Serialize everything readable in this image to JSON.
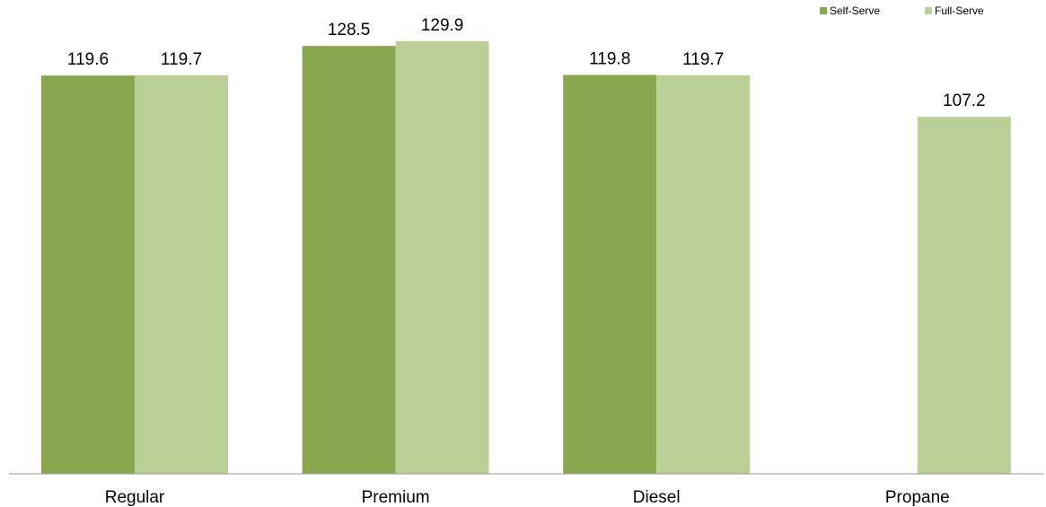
{
  "chart_data": {
    "type": "bar",
    "categories": [
      "Regular",
      "Premium",
      "Diesel",
      "Propane"
    ],
    "series": [
      {
        "name": "Self-Serve",
        "color": "#8aa64e",
        "values": [
          119.6,
          128.5,
          119.8,
          null
        ]
      },
      {
        "name": "Full-Serve",
        "color": "#bbd096",
        "values": [
          119.7,
          129.9,
          119.7,
          107.2
        ]
      }
    ],
    "value_labels": [
      [
        "119.6",
        "128.5",
        "119.8",
        ""
      ],
      [
        "119.7",
        "129.9",
        "119.7",
        "107.2"
      ]
    ],
    "ylim": [
      0,
      130
    ],
    "grid": false,
    "legend_position": "top-right",
    "axis_color": "#999999"
  }
}
